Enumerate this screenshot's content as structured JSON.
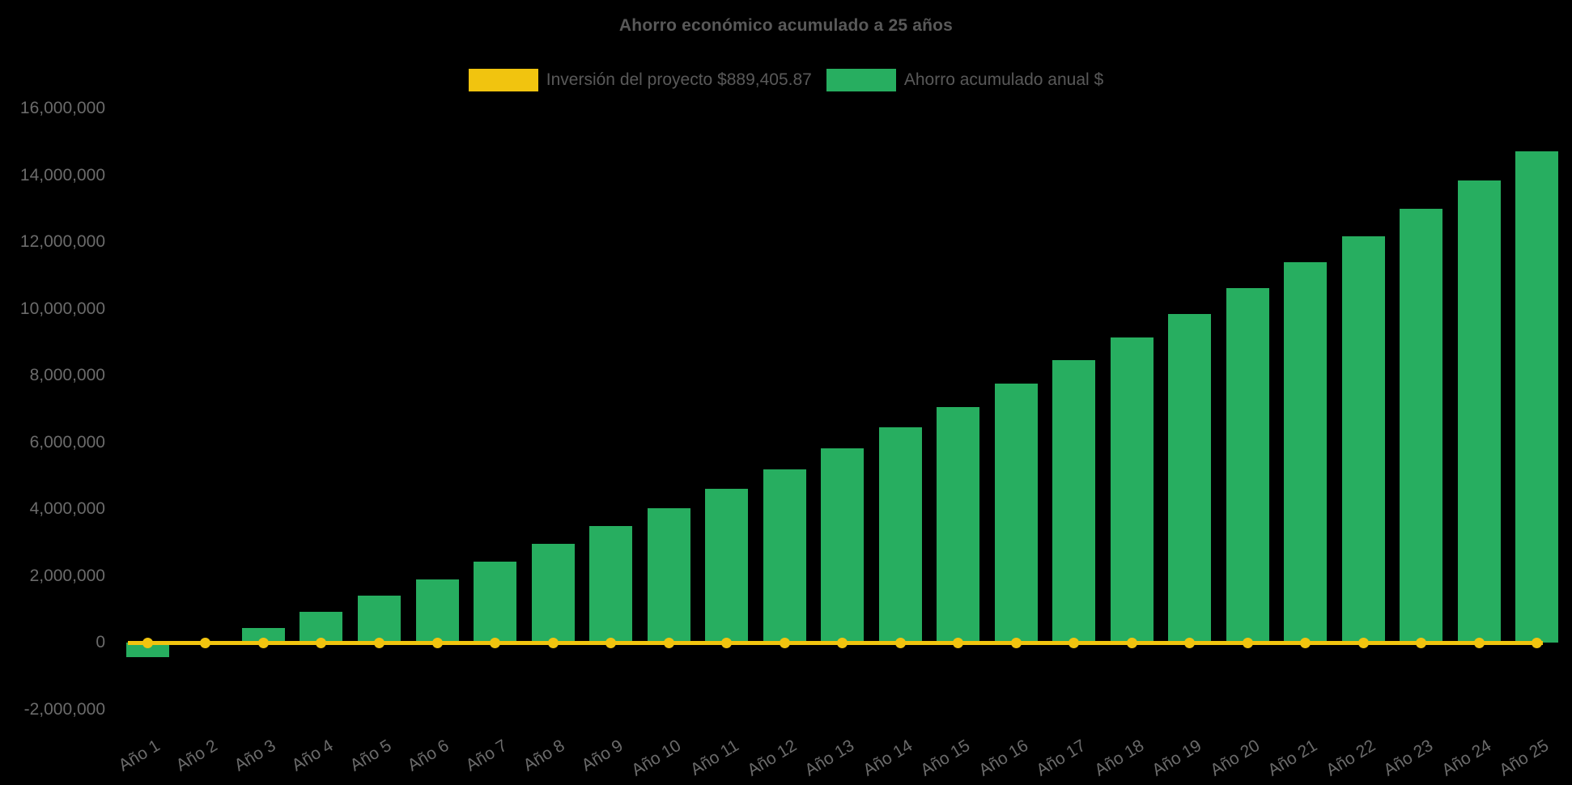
{
  "title": "Ahorro económico acumulado a 25 años",
  "legend": [
    {
      "label": "Inversión del proyecto $889,405.87",
      "color": "#F1C40F",
      "marker": "yellow-box"
    },
    {
      "label": "Ahorro acumulado anual $",
      "color": "#27AE60",
      "marker": "green-box"
    }
  ],
  "colors": {
    "background": "#000000",
    "bar_green": "#27AE60",
    "line_yellow": "#F1C40F",
    "title_text": "#595959",
    "axis_text": "#6b6b6b"
  },
  "chart_data": {
    "type": "bar",
    "title": "Ahorro económico acumulado a 25 años",
    "xlabel": "",
    "ylabel": "",
    "grid": false,
    "legend_position": "top",
    "background": "#000000",
    "ylim": [
      -2000000,
      16000000
    ],
    "categories": [
      "Año 1",
      "Año 2",
      "Año 3",
      "Año 4",
      "Año 5",
      "Año 6",
      "Año 7",
      "Año 8",
      "Año 9",
      "Año 10",
      "Año 11",
      "Año 12",
      "Año 13",
      "Año 14",
      "Año 15",
      "Año 16",
      "Año 17",
      "Año 18",
      "Año 19",
      "Año 20",
      "Año 21",
      "Año 22",
      "Año 23",
      "Año 24",
      "Año 25"
    ],
    "series": [
      {
        "name": "Ahorro acumulado anual $",
        "type": "bar",
        "color": "#27AE60",
        "values": [
          -440000,
          20000,
          440000,
          910000,
          1410000,
          1900000,
          2420000,
          2950000,
          3490000,
          4020000,
          4600000,
          5190000,
          5830000,
          6450000,
          7060000,
          7750000,
          8450000,
          9150000,
          9850000,
          10610000,
          11400000,
          12160000,
          13000000,
          13850000,
          14710000
        ]
      },
      {
        "name": "Inversión del proyecto $889,405.87",
        "type": "line",
        "color": "#F1C40F",
        "investment_amount_label": "$889,405.87",
        "plotted_value": 0,
        "point_style": "filled-circle"
      }
    ],
    "y_axis": {
      "tick_labels": [
        "16,000,000",
        "14,000,000",
        "12,000,000",
        "10,000,000",
        "8,000,000",
        "6,000,000",
        "4,000,000",
        "2,000,000",
        "0",
        "-2,000,000"
      ],
      "tick_values": [
        16000000,
        14000000,
        12000000,
        10000000,
        8000000,
        6000000,
        4000000,
        2000000,
        0,
        -2000000
      ]
    }
  }
}
